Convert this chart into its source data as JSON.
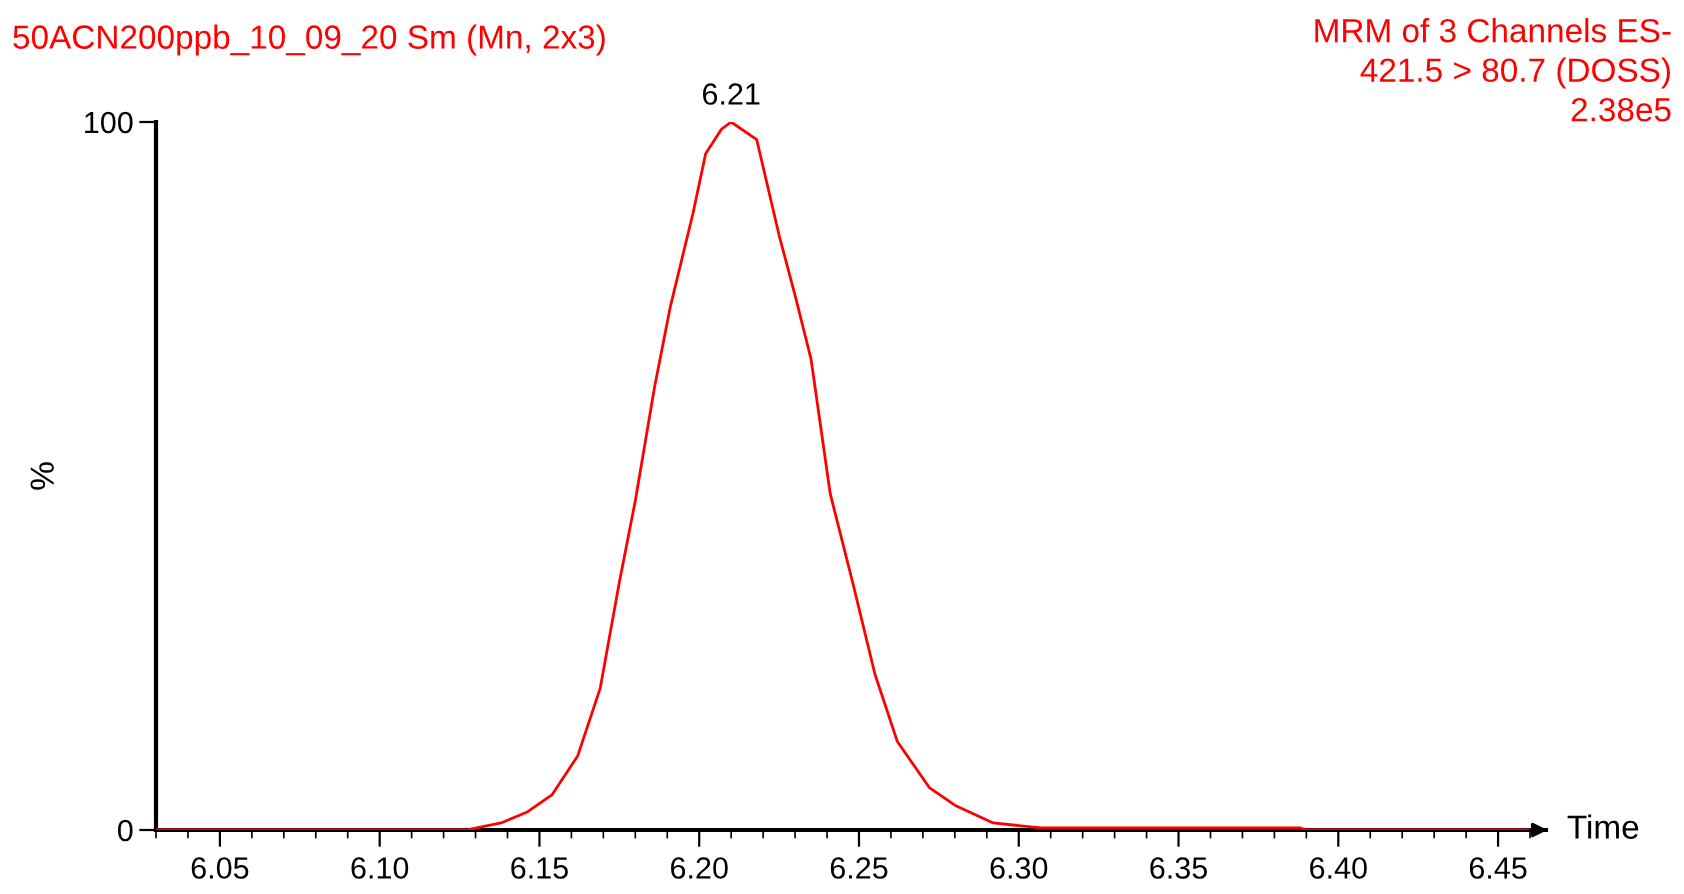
{
  "chart_data": {
    "type": "line",
    "title": "50ACN200ppb_10_09_20 Sm (Mn, 2x3)",
    "subtitle": "MRM of 3 Channels ES-\n421.5 > 80.7 (DOSS)\n2.38e5",
    "xlabel": "Time",
    "ylabel": "%",
    "series": [
      {
        "color": "#ff0000",
        "x": [
          6.03,
          6.127,
          6.138,
          6.146,
          6.154,
          6.162,
          6.169,
          6.175,
          6.18,
          6.186,
          6.191,
          6.198,
          6.202,
          6.207,
          6.21,
          6.218,
          6.225,
          6.23,
          6.235,
          6.241,
          6.248,
          6.255,
          6.262,
          6.272,
          6.28,
          6.292,
          6.307,
          6.388,
          6.39,
          6.462
        ],
        "values": [
          0,
          0,
          1,
          2.5,
          5,
          10.5,
          20,
          35,
          46.5,
          62.5,
          74,
          87,
          95.5,
          99,
          100,
          97.5,
          84,
          75.5,
          66.5,
          47.5,
          35,
          22,
          12.5,
          6,
          3.5,
          1,
          0.3,
          0.3,
          0,
          0
        ]
      }
    ],
    "annotations": [
      {
        "text": "6.21",
        "x": 6.21,
        "y": 100
      }
    ],
    "xlim": [
      6.03,
      6.465
    ],
    "xticks": [
      6.05,
      {
        "value": 6.1,
        "label": "6.10"
      },
      6.15,
      {
        "value": 6.2,
        "label": "6.20"
      },
      6.25,
      {
        "value": 6.3,
        "label": "6.30"
      },
      6.35,
      {
        "value": 6.4,
        "label": "6.40"
      },
      6.45
    ],
    "ylim": [
      0,
      100
    ],
    "yticks": [
      0,
      100
    ],
    "grid": false,
    "marker": "none",
    "line_style": "solid"
  }
}
